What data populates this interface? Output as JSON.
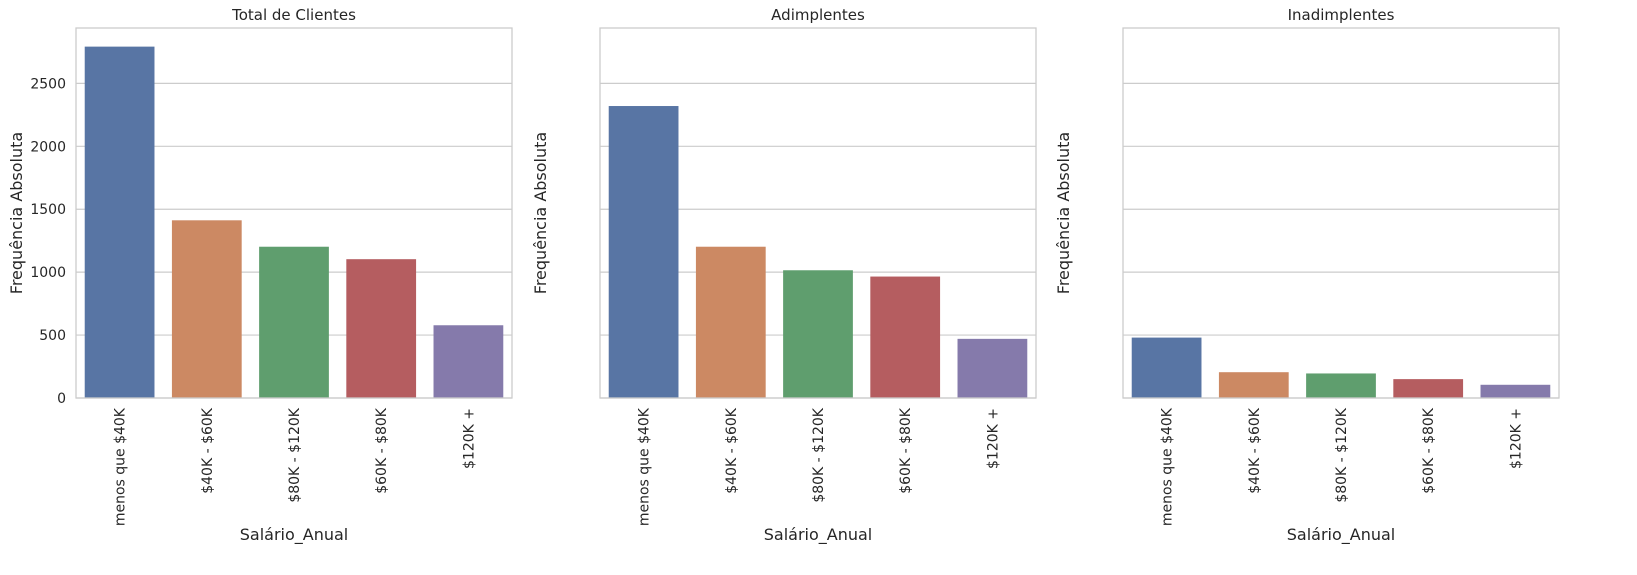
{
  "chart_data": [
    {
      "type": "bar",
      "title": "Total de Clientes",
      "xlabel": "Salário_Anual",
      "ylabel": "Frequência Absoluta",
      "categories": [
        "menos que $40K",
        "$40K - $60K",
        "$80K - $120K",
        "$60K - $80K",
        "$120K +"
      ],
      "values": [
        2792,
        1412,
        1202,
        1103,
        578
      ],
      "ylim": [
        0,
        2940
      ],
      "yticks": [
        0,
        500,
        1000,
        1500,
        2000,
        2500
      ],
      "show_ytick_labels": true,
      "grid": true
    },
    {
      "type": "bar",
      "title": "Adimplentes",
      "xlabel": "Salário_Anual",
      "ylabel": "Frequência Absoluta",
      "categories": [
        "menos que $40K",
        "$40K - $60K",
        "$80K - $120K",
        "$60K - $80K",
        "$120K +"
      ],
      "values": [
        2320,
        1202,
        1015,
        965,
        470
      ],
      "ylim": [
        0,
        2940
      ],
      "yticks": [
        0,
        500,
        1000,
        1500,
        2000,
        2500
      ],
      "show_ytick_labels": false,
      "grid": true
    },
    {
      "type": "bar",
      "title": "Inadimplentes",
      "xlabel": "Salário_Anual",
      "ylabel": "Frequência Absoluta",
      "categories": [
        "menos que $40K",
        "$40K - $60K",
        "$80K - $120K",
        "$60K - $80K",
        "$120K +"
      ],
      "values": [
        480,
        205,
        195,
        150,
        105
      ],
      "ylim": [
        0,
        2940
      ],
      "yticks": [
        0,
        500,
        1000,
        1500,
        2000,
        2500
      ],
      "show_ytick_labels": false,
      "grid": true
    }
  ],
  "colors": [
    "#5875a4",
    "#cc8963",
    "#5f9e6e",
    "#b55d60",
    "#857aab"
  ]
}
